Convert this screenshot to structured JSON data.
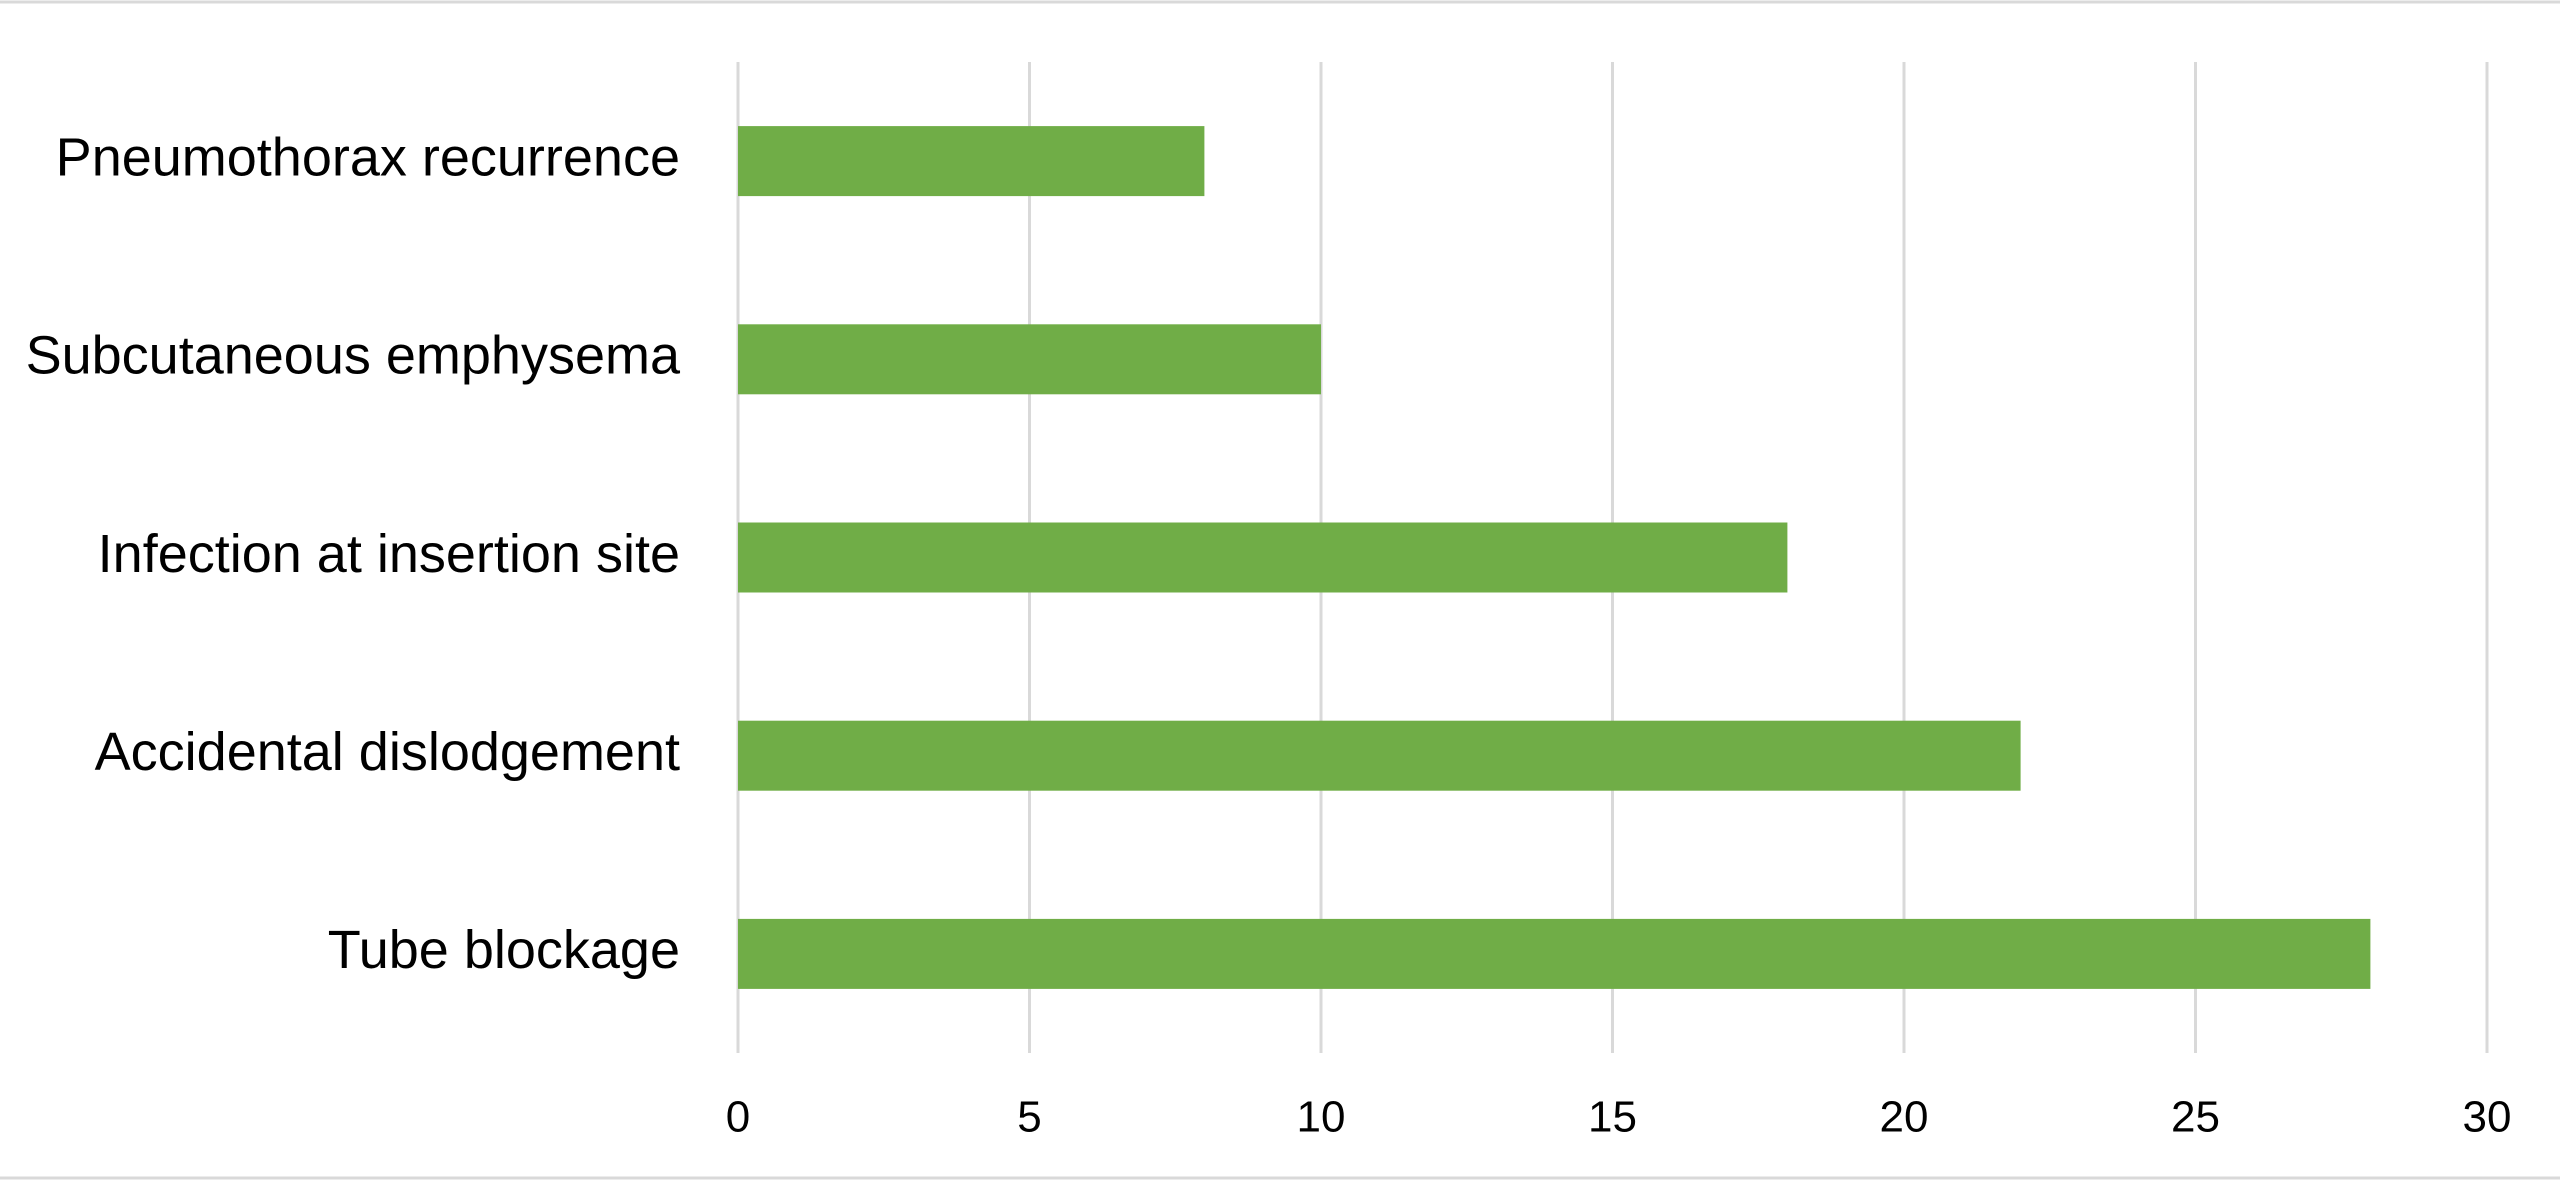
{
  "chart_data": {
    "type": "hbar",
    "categories": [
      "Pneumothorax recurrence",
      "Subcutaneous emphysema",
      "Infection at insertion site",
      "Accidental dislodgement",
      "Tube blockage"
    ],
    "values": [
      8,
      10,
      18,
      22,
      28
    ],
    "color": "#70ad47",
    "xlim": [
      0,
      30
    ],
    "xticks": [
      0,
      5,
      10,
      15,
      20,
      25,
      30
    ],
    "grid": true
  }
}
